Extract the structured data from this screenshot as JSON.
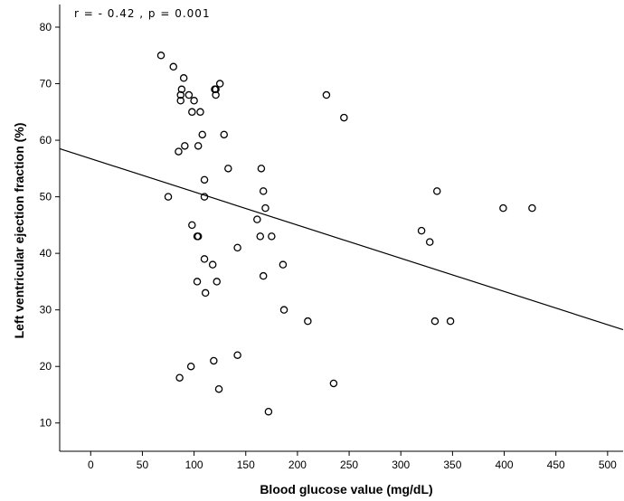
{
  "chart_data": {
    "type": "scatter",
    "annotation": "r = - 0.42 , p = 0.001",
    "xlabel": "Blood glucose value (mg/dL)",
    "ylabel": "Left ventricular ejection fraction (%)",
    "xlim": [
      -30,
      515
    ],
    "ylim": [
      5,
      84
    ],
    "x_ticks": [
      0,
      50,
      100,
      150,
      200,
      250,
      300,
      350,
      400,
      450,
      500
    ],
    "y_ticks": [
      10,
      20,
      30,
      40,
      50,
      60,
      70,
      80
    ],
    "grid": false,
    "legend": "none",
    "marker_color": "#000000",
    "regression_line": {
      "x": [
        -30,
        515
      ],
      "y": [
        58.5,
        26.5
      ]
    },
    "points": [
      {
        "x": 68,
        "y": 75
      },
      {
        "x": 80,
        "y": 73
      },
      {
        "x": 90,
        "y": 71
      },
      {
        "x": 88,
        "y": 69
      },
      {
        "x": 87,
        "y": 68
      },
      {
        "x": 87,
        "y": 67
      },
      {
        "x": 95,
        "y": 68
      },
      {
        "x": 100,
        "y": 67
      },
      {
        "x": 98,
        "y": 65
      },
      {
        "x": 106,
        "y": 65
      },
      {
        "x": 120,
        "y": 69
      },
      {
        "x": 121,
        "y": 69
      },
      {
        "x": 121,
        "y": 68
      },
      {
        "x": 125,
        "y": 70
      },
      {
        "x": 108,
        "y": 61
      },
      {
        "x": 129,
        "y": 61
      },
      {
        "x": 91,
        "y": 59
      },
      {
        "x": 104,
        "y": 59
      },
      {
        "x": 85,
        "y": 58
      },
      {
        "x": 133,
        "y": 55
      },
      {
        "x": 110,
        "y": 53
      },
      {
        "x": 75,
        "y": 50
      },
      {
        "x": 110,
        "y": 50
      },
      {
        "x": 98,
        "y": 45
      },
      {
        "x": 103,
        "y": 43
      },
      {
        "x": 104,
        "y": 43
      },
      {
        "x": 110,
        "y": 39
      },
      {
        "x": 118,
        "y": 38
      },
      {
        "x": 103,
        "y": 35
      },
      {
        "x": 122,
        "y": 35
      },
      {
        "x": 111,
        "y": 33
      },
      {
        "x": 142,
        "y": 41
      },
      {
        "x": 165,
        "y": 55
      },
      {
        "x": 167,
        "y": 51
      },
      {
        "x": 169,
        "y": 48
      },
      {
        "x": 161,
        "y": 46
      },
      {
        "x": 164,
        "y": 43
      },
      {
        "x": 175,
        "y": 43
      },
      {
        "x": 186,
        "y": 38
      },
      {
        "x": 167,
        "y": 36
      },
      {
        "x": 187,
        "y": 30
      },
      {
        "x": 210,
        "y": 28
      },
      {
        "x": 228,
        "y": 68
      },
      {
        "x": 245,
        "y": 64
      },
      {
        "x": 235,
        "y": 17
      },
      {
        "x": 119,
        "y": 21
      },
      {
        "x": 142,
        "y": 22
      },
      {
        "x": 97,
        "y": 20
      },
      {
        "x": 86,
        "y": 18
      },
      {
        "x": 124,
        "y": 16
      },
      {
        "x": 172,
        "y": 12
      },
      {
        "x": 320,
        "y": 44
      },
      {
        "x": 328,
        "y": 42
      },
      {
        "x": 335,
        "y": 51
      },
      {
        "x": 333,
        "y": 28
      },
      {
        "x": 348,
        "y": 28
      },
      {
        "x": 399,
        "y": 48
      },
      {
        "x": 427,
        "y": 48
      }
    ]
  }
}
